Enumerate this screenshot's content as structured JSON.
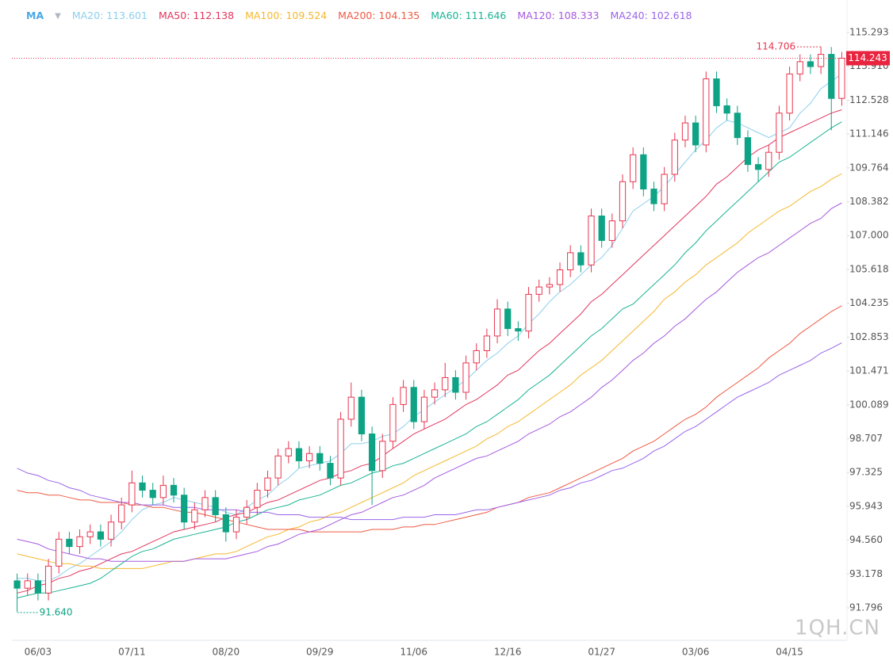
{
  "chart_data": {
    "type": "candlestick",
    "indicator": "MA",
    "watermark": "1QH.CN",
    "up_color": "#e8364f",
    "down_color": "#0fa385",
    "max_label": "114.706",
    "min_label": "91.640",
    "last_label": "114.243",
    "ylim": [
      90.566,
      115.649
    ],
    "yticks": [
      115.293,
      {
        "value": 113.91,
        "label": "113.910"
      },
      112.528,
      111.146,
      109.764,
      108.382,
      {
        "value": 107,
        "label": "107.000"
      },
      105.618,
      104.235,
      102.853,
      101.471,
      100.089,
      98.707,
      97.325,
      95.943,
      {
        "value": 94.56,
        "label": "94.560"
      },
      93.178,
      91.796
    ],
    "categories": [
      null,
      null,
      "06/03",
      null,
      null,
      null,
      null,
      null,
      null,
      null,
      null,
      "07/11",
      null,
      null,
      null,
      null,
      null,
      null,
      null,
      null,
      "08/20",
      null,
      null,
      null,
      null,
      null,
      null,
      null,
      null,
      "09/29",
      null,
      null,
      null,
      null,
      null,
      null,
      null,
      null,
      "11/06",
      null,
      null,
      null,
      null,
      null,
      null,
      null,
      null,
      "12/16",
      null,
      null,
      null,
      null,
      null,
      null,
      null,
      null,
      "01/27",
      null,
      null,
      null,
      null,
      null,
      null,
      null,
      null,
      "03/06",
      null,
      null,
      null,
      null,
      null,
      null,
      null,
      null,
      "04/15",
      null,
      null,
      null,
      null,
      null
    ],
    "open": [
      92.9,
      92.6,
      92.9,
      92.4,
      93.5,
      94.6,
      94.3,
      94.7,
      94.9,
      94.6,
      95.3,
      96.0,
      96.9,
      96.6,
      96.3,
      96.8,
      96.4,
      95.3,
      95.8,
      96.3,
      95.6,
      94.9,
      95.5,
      95.9,
      96.6,
      97.1,
      98.0,
      98.3,
      97.8,
      98.1,
      97.7,
      97.1,
      99.5,
      100.4,
      98.9,
      97.4,
      98.6,
      100.1,
      100.8,
      99.4,
      100.4,
      100.7,
      101.2,
      100.6,
      101.8,
      102.3,
      102.9,
      104.0,
      103.2,
      103.1,
      104.6,
      104.9,
      105.0,
      105.6,
      106.3,
      105.8,
      107.8,
      106.8,
      107.6,
      109.2,
      110.3,
      108.9,
      108.3,
      109.5,
      110.9,
      111.6,
      110.7,
      113.4,
      112.3,
      112.0,
      111.0,
      109.9,
      109.7,
      110.4,
      112.0,
      113.6,
      114.1,
      113.9,
      114.4,
      112.6
    ],
    "high": [
      93.2,
      93.2,
      93.2,
      93.8,
      94.9,
      94.9,
      95.0,
      95.2,
      95.2,
      95.6,
      96.3,
      97.4,
      97.2,
      96.9,
      97.2,
      97.1,
      96.7,
      96.1,
      96.6,
      96.6,
      95.9,
      95.8,
      96.2,
      96.9,
      97.4,
      98.3,
      98.6,
      98.6,
      98.4,
      98.4,
      98.0,
      99.8,
      101.0,
      100.7,
      99.2,
      98.9,
      100.4,
      101.1,
      101.1,
      100.7,
      101.0,
      101.8,
      101.5,
      102.1,
      102.6,
      103.2,
      104.4,
      104.3,
      103.5,
      104.9,
      105.2,
      105.3,
      105.9,
      106.6,
      106.6,
      108.1,
      108.1,
      107.9,
      109.5,
      110.6,
      110.6,
      109.2,
      109.8,
      111.2,
      111.9,
      111.9,
      113.7,
      113.7,
      112.6,
      112.3,
      111.3,
      110.2,
      110.7,
      112.3,
      113.9,
      114.4,
      114.4,
      114.706,
      114.7,
      114.5
    ],
    "low": [
      91.64,
      92.3,
      92.1,
      92.1,
      93.2,
      94.0,
      94.0,
      94.4,
      94.3,
      94.3,
      95.0,
      95.7,
      96.3,
      96.0,
      96.0,
      96.1,
      95.0,
      95.0,
      95.5,
      95.3,
      94.5,
      94.6,
      95.2,
      95.6,
      96.3,
      96.8,
      97.7,
      97.5,
      97.5,
      97.4,
      96.8,
      96.8,
      99.2,
      98.6,
      96.0,
      97.1,
      98.3,
      99.8,
      99.1,
      99.1,
      100.1,
      100.4,
      100.3,
      100.3,
      101.5,
      102.0,
      102.6,
      102.9,
      102.7,
      102.8,
      104.3,
      104.6,
      104.7,
      105.3,
      105.5,
      105.5,
      106.5,
      106.5,
      107.3,
      108.9,
      108.6,
      108.0,
      108.0,
      109.2,
      110.6,
      110.4,
      110.4,
      112.0,
      111.7,
      110.7,
      109.6,
      109.2,
      109.4,
      110.1,
      111.7,
      113.3,
      113.6,
      113.6,
      111.3,
      112.3
    ],
    "close": [
      92.6,
      92.9,
      92.4,
      93.5,
      94.6,
      94.3,
      94.7,
      94.9,
      94.6,
      95.3,
      96.0,
      96.9,
      96.6,
      96.3,
      96.8,
      96.4,
      95.3,
      95.8,
      96.3,
      95.6,
      94.9,
      95.5,
      95.9,
      96.6,
      97.1,
      98.0,
      98.3,
      97.8,
      98.1,
      97.7,
      97.1,
      99.5,
      100.4,
      98.9,
      97.4,
      98.6,
      100.1,
      100.8,
      99.4,
      100.4,
      100.7,
      101.2,
      100.6,
      101.8,
      102.3,
      102.9,
      104.0,
      103.2,
      103.1,
      104.6,
      104.9,
      105.0,
      105.6,
      106.3,
      105.8,
      107.8,
      106.8,
      107.6,
      109.2,
      110.3,
      108.9,
      108.3,
      109.5,
      110.9,
      111.6,
      110.7,
      113.4,
      112.3,
      112.0,
      111.0,
      109.9,
      109.7,
      110.4,
      112.0,
      113.6,
      114.1,
      113.9,
      114.4,
      112.6,
      114.243
    ],
    "series": [
      {
        "name": "MA20",
        "legend_label": "MA20: 113.601",
        "color": "#8ccfee",
        "values": [
          93.0,
          93.0,
          92.9,
          92.9,
          93.1,
          93.4,
          93.6,
          93.9,
          94.2,
          94.5,
          94.9,
          95.4,
          95.8,
          96.0,
          96.1,
          96.3,
          96.2,
          96.1,
          96.0,
          95.9,
          95.7,
          95.6,
          95.9,
          96.2,
          96.4,
          96.8,
          97.1,
          97.5,
          97.6,
          97.7,
          97.8,
          98.1,
          98.5,
          98.5,
          98.6,
          98.8,
          98.9,
          99.2,
          99.6,
          99.9,
          100.2,
          100.5,
          100.8,
          101.1,
          101.5,
          101.9,
          102.2,
          102.6,
          102.9,
          103.4,
          103.8,
          104.3,
          104.7,
          105.0,
          105.4,
          105.8,
          106.1,
          106.6,
          107.3,
          108.0,
          108.3,
          108.6,
          109.0,
          109.5,
          110.0,
          110.5,
          110.9,
          111.4,
          111.7,
          111.6,
          111.4,
          111.2,
          111.0,
          111.2,
          111.4,
          112.0,
          112.4,
          113.0,
          113.3,
          113.601
        ]
      },
      {
        "name": "MA50",
        "legend_label": "MA50: 112.138",
        "color": "#e2365e",
        "values": [
          92.4,
          92.5,
          92.7,
          92.8,
          93.0,
          93.1,
          93.3,
          93.4,
          93.6,
          93.8,
          94.0,
          94.1,
          94.3,
          94.5,
          94.7,
          94.9,
          95.0,
          95.1,
          95.2,
          95.3,
          95.5,
          95.6,
          95.7,
          95.9,
          96.1,
          96.2,
          96.4,
          96.6,
          96.8,
          97.0,
          97.1,
          97.3,
          97.4,
          97.6,
          97.7,
          98.0,
          98.3,
          98.6,
          98.9,
          99.1,
          99.3,
          99.5,
          99.8,
          100.1,
          100.3,
          100.6,
          100.9,
          101.3,
          101.5,
          101.9,
          102.3,
          102.6,
          103.0,
          103.4,
          103.8,
          104.3,
          104.6,
          105.0,
          105.4,
          105.8,
          106.2,
          106.6,
          107.0,
          107.4,
          107.8,
          108.2,
          108.6,
          109.1,
          109.4,
          109.8,
          110.2,
          110.5,
          110.7,
          111.0,
          111.2,
          111.4,
          111.6,
          111.8,
          112.0,
          112.138
        ]
      },
      {
        "name": "MA100",
        "legend_label": "MA100: 109.524",
        "color": "#f5b82e",
        "values": [
          94.0,
          93.9,
          93.8,
          93.7,
          93.6,
          93.6,
          93.5,
          93.5,
          93.4,
          93.4,
          93.4,
          93.4,
          93.4,
          93.5,
          93.6,
          93.7,
          93.7,
          93.8,
          93.9,
          94.0,
          94.0,
          94.1,
          94.3,
          94.5,
          94.7,
          94.8,
          95.0,
          95.1,
          95.3,
          95.4,
          95.6,
          95.7,
          95.9,
          96.1,
          96.3,
          96.5,
          96.7,
          96.9,
          97.2,
          97.4,
          97.6,
          97.8,
          98.0,
          98.2,
          98.4,
          98.7,
          98.9,
          99.2,
          99.4,
          99.7,
          100.0,
          100.3,
          100.6,
          100.9,
          101.3,
          101.6,
          101.9,
          102.3,
          102.7,
          103.1,
          103.5,
          103.9,
          104.4,
          104.7,
          105.1,
          105.4,
          105.8,
          106.1,
          106.4,
          106.7,
          107.1,
          107.4,
          107.7,
          108.0,
          108.2,
          108.5,
          108.8,
          109.0,
          109.3,
          109.524
        ]
      },
      {
        "name": "MA200",
        "legend_label": "MA200: 104.135",
        "color": "#ef5a43",
        "values": [
          96.6,
          96.5,
          96.5,
          96.4,
          96.4,
          96.3,
          96.2,
          96.2,
          96.1,
          96.1,
          96.1,
          96.0,
          96.0,
          95.9,
          95.9,
          95.8,
          95.7,
          95.7,
          95.6,
          95.5,
          95.4,
          95.3,
          95.2,
          95.1,
          95.0,
          95.0,
          95.0,
          95.0,
          94.9,
          94.9,
          94.9,
          94.9,
          94.9,
          94.9,
          95.0,
          95.0,
          95.0,
          95.1,
          95.1,
          95.2,
          95.2,
          95.3,
          95.4,
          95.5,
          95.6,
          95.7,
          95.9,
          96.0,
          96.1,
          96.3,
          96.4,
          96.5,
          96.7,
          96.9,
          97.1,
          97.3,
          97.5,
          97.7,
          97.9,
          98.2,
          98.4,
          98.6,
          98.9,
          99.2,
          99.5,
          99.7,
          100.0,
          100.4,
          100.7,
          101.0,
          101.3,
          101.6,
          102.0,
          102.3,
          102.6,
          103.0,
          103.3,
          103.6,
          103.9,
          104.135
        ]
      },
      {
        "name": "MA60",
        "legend_label": "MA60: 111.646",
        "color": "#19b394",
        "values": [
          92.2,
          92.3,
          92.4,
          92.4,
          92.5,
          92.6,
          92.7,
          92.8,
          93.0,
          93.3,
          93.6,
          93.9,
          94.1,
          94.2,
          94.4,
          94.6,
          94.7,
          94.8,
          94.9,
          95.0,
          95.1,
          95.3,
          95.4,
          95.6,
          95.8,
          95.9,
          96.0,
          96.2,
          96.3,
          96.4,
          96.6,
          96.8,
          96.9,
          97.1,
          97.3,
          97.4,
          97.6,
          97.7,
          97.9,
          98.1,
          98.3,
          98.5,
          98.7,
          98.9,
          99.2,
          99.4,
          99.7,
          100.0,
          100.3,
          100.7,
          101.0,
          101.3,
          101.7,
          102.1,
          102.5,
          102.9,
          103.2,
          103.6,
          104.0,
          104.2,
          104.6,
          105.0,
          105.4,
          105.8,
          106.3,
          106.7,
          107.2,
          107.6,
          108.0,
          108.4,
          108.8,
          109.2,
          109.6,
          110.0,
          110.2,
          110.5,
          110.8,
          111.1,
          111.4,
          111.646
        ]
      },
      {
        "name": "MA120",
        "legend_label": "MA120: 108.333",
        "color": "#a55ade",
        "values": [
          94.6,
          94.5,
          94.4,
          94.2,
          94.1,
          94.0,
          93.9,
          93.8,
          93.8,
          93.7,
          93.7,
          93.7,
          93.7,
          93.7,
          93.7,
          93.7,
          93.7,
          93.8,
          93.8,
          93.8,
          93.8,
          93.9,
          94.0,
          94.1,
          94.3,
          94.4,
          94.6,
          94.8,
          94.9,
          95.0,
          95.2,
          95.4,
          95.6,
          95.7,
          95.9,
          96.1,
          96.3,
          96.4,
          96.6,
          96.8,
          97.1,
          97.3,
          97.5,
          97.7,
          97.9,
          98.0,
          98.2,
          98.4,
          98.6,
          98.9,
          99.1,
          99.3,
          99.6,
          99.8,
          100.1,
          100.4,
          100.8,
          101.1,
          101.5,
          101.9,
          102.2,
          102.6,
          102.9,
          103.3,
          103.6,
          104.0,
          104.4,
          104.7,
          105.1,
          105.5,
          105.8,
          106.1,
          106.3,
          106.6,
          106.9,
          107.2,
          107.5,
          107.7,
          108.1,
          108.333
        ]
      },
      {
        "name": "MA240",
        "legend_label": "MA240: 102.618",
        "color": "#9a64ea",
        "values": [
          97.5,
          97.3,
          97.2,
          97.0,
          96.9,
          96.7,
          96.6,
          96.4,
          96.3,
          96.2,
          96.1,
          96.1,
          96.0,
          96.0,
          96.0,
          95.9,
          95.9,
          95.9,
          95.8,
          95.8,
          95.8,
          95.8,
          95.7,
          95.7,
          95.7,
          95.6,
          95.6,
          95.6,
          95.5,
          95.5,
          95.5,
          95.5,
          95.4,
          95.4,
          95.4,
          95.4,
          95.4,
          95.5,
          95.5,
          95.5,
          95.6,
          95.6,
          95.6,
          95.7,
          95.8,
          95.8,
          95.9,
          96.0,
          96.1,
          96.2,
          96.3,
          96.4,
          96.6,
          96.7,
          96.9,
          97.0,
          97.2,
          97.4,
          97.5,
          97.7,
          97.9,
          98.2,
          98.4,
          98.7,
          99.0,
          99.2,
          99.5,
          99.8,
          100.1,
          100.4,
          100.6,
          100.8,
          101.0,
          101.3,
          101.5,
          101.7,
          101.9,
          102.2,
          102.4,
          102.618
        ]
      }
    ]
  }
}
